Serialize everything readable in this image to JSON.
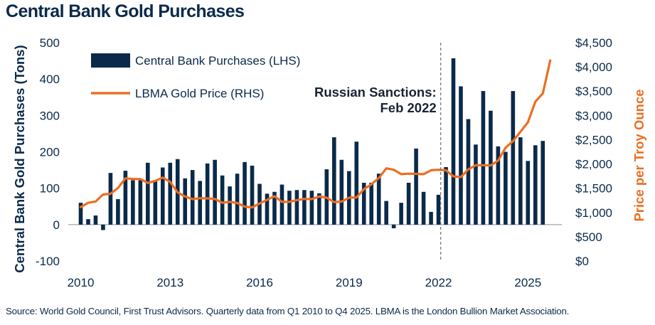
{
  "chart_data": {
    "type": "bar+line",
    "title": "Central Bank Gold Purchases",
    "ylabel_left": "Central Bank Gold Purchases (Tons)",
    "ylabel_right": "Price per Troy Ounce",
    "ylim_left": [
      -100,
      500
    ],
    "ylim_right": [
      0,
      4500
    ],
    "left_ticks": [
      "500",
      "400",
      "300",
      "200",
      "100",
      "0",
      "-100"
    ],
    "right_ticks": [
      "$4,500",
      "$4,000",
      "$3,500",
      "$3,000",
      "$2,500",
      "$2,000",
      "$1,500",
      "$1,000",
      "$500",
      "$0"
    ],
    "x_ticks": [
      "2010",
      "2013",
      "2016",
      "2019",
      "2022",
      "2025"
    ],
    "legend": {
      "bars_label": "Central Bank Purchases (LHS)",
      "line_label": "LBMA Gold Price (RHS)"
    },
    "annotation": {
      "line1": "Russian Sanctions:",
      "line2": "Feb 2022",
      "x_index": 48.3
    },
    "x_start_year": 2010,
    "periods_per_year": 4,
    "series": [
      {
        "name": "Central Bank Purchases (LHS)",
        "type": "bar",
        "color": "#0b2a4a",
        "values": [
          60,
          15,
          25,
          -15,
          142,
          70,
          148,
          122,
          122,
          170,
          122,
          157,
          170,
          180,
          127,
          150,
          120,
          168,
          178,
          135,
          105,
          140,
          172,
          162,
          112,
          85,
          90,
          110,
          93,
          95,
          95,
          93,
          86,
          152,
          240,
          178,
          147,
          228,
          115,
          115,
          140,
          65,
          -10,
          60,
          115,
          209,
          90,
          35,
          82,
          158,
          457,
          380,
          290,
          220,
          367,
          313,
          215,
          200,
          367,
          240,
          175,
          218,
          230
        ]
      },
      {
        "name": "LBMA Gold Price (RHS)",
        "type": "line",
        "color": "#ec6e21",
        "values": [
          1110,
          1200,
          1225,
          1370,
          1385,
          1505,
          1705,
          1690,
          1690,
          1610,
          1650,
          1720,
          1630,
          1415,
          1330,
          1275,
          1295,
          1290,
          1280,
          1200,
          1220,
          1195,
          1120,
          1105,
          1185,
          1260,
          1335,
          1220,
          1220,
          1255,
          1280,
          1275,
          1330,
          1305,
          1215,
          1225,
          1305,
          1310,
          1480,
          1580,
          1710,
          1910,
          1880,
          1790,
          1800,
          1795,
          1790,
          1870,
          1880,
          1870,
          1745,
          1730,
          1890,
          1975,
          1975,
          1970,
          2070,
          2335,
          2470,
          2665,
          2860,
          3285,
          3455,
          4135
        ]
      }
    ]
  },
  "footnote": "Source: World Gold Council, First Trust Advisors. Quarterly data from Q1 2010 to Q4 2025. LBMA is the London Bullion Market Association."
}
